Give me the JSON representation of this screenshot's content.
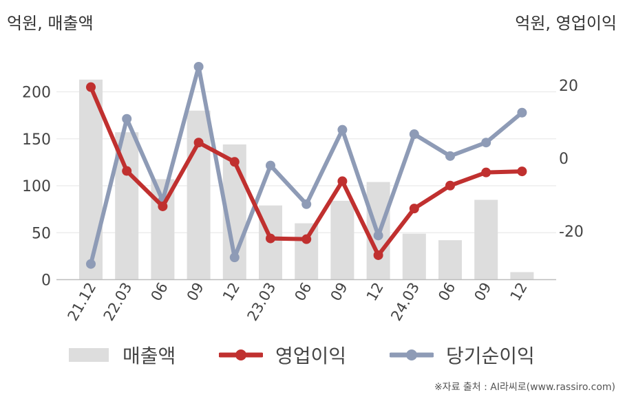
{
  "chart_data": {
    "type": "bar+line",
    "left_axis_label": "억원, 매출액",
    "right_axis_label": "억원, 영업이익",
    "categories": [
      "21.12",
      "22.03",
      "06",
      "09",
      "12",
      "23.03",
      "06",
      "09",
      "12",
      "24.03",
      "06",
      "09",
      "12"
    ],
    "left_axis": {
      "ticks": [
        0,
        50,
        100,
        150,
        200
      ],
      "range": [
        0,
        235
      ]
    },
    "right_axis": {
      "ticks": [
        20,
        0,
        -20
      ],
      "range": [
        -33.8,
        31.4
      ]
    },
    "bar_series": {
      "name": "매출액",
      "color": "#dddddd",
      "values": [
        213,
        157,
        107,
        180,
        144,
        79,
        60,
        84,
        104,
        49,
        42,
        85,
        8
      ]
    },
    "line_series": [
      {
        "name": "영업이익",
        "color": "#c0302f",
        "axis": "right",
        "values": [
          19.5,
          -3.5,
          -13.2,
          4.3,
          -1.0,
          -22.0,
          -22.2,
          -6.3,
          -26.6,
          -13.8,
          -7.5,
          -3.9,
          -3.6
        ]
      },
      {
        "name": "당기순이익",
        "color": "#8e9bb6",
        "axis": "right",
        "values": [
          -29.0,
          10.8,
          -11.6,
          25.1,
          -27.2,
          -2.0,
          -12.6,
          7.8,
          -21.2,
          6.6,
          0.6,
          4.3,
          12.5
        ]
      }
    ],
    "legend": [
      {
        "name": "매출액",
        "kind": "bar",
        "color": "#dddddd"
      },
      {
        "name": "영업이익",
        "kind": "line",
        "color": "#c0302f"
      },
      {
        "name": "당기순이익",
        "kind": "line",
        "color": "#8e9bb6"
      }
    ],
    "grid": true
  },
  "source": "※자료 출처 : AI라씨로(www.rassiro.com)"
}
